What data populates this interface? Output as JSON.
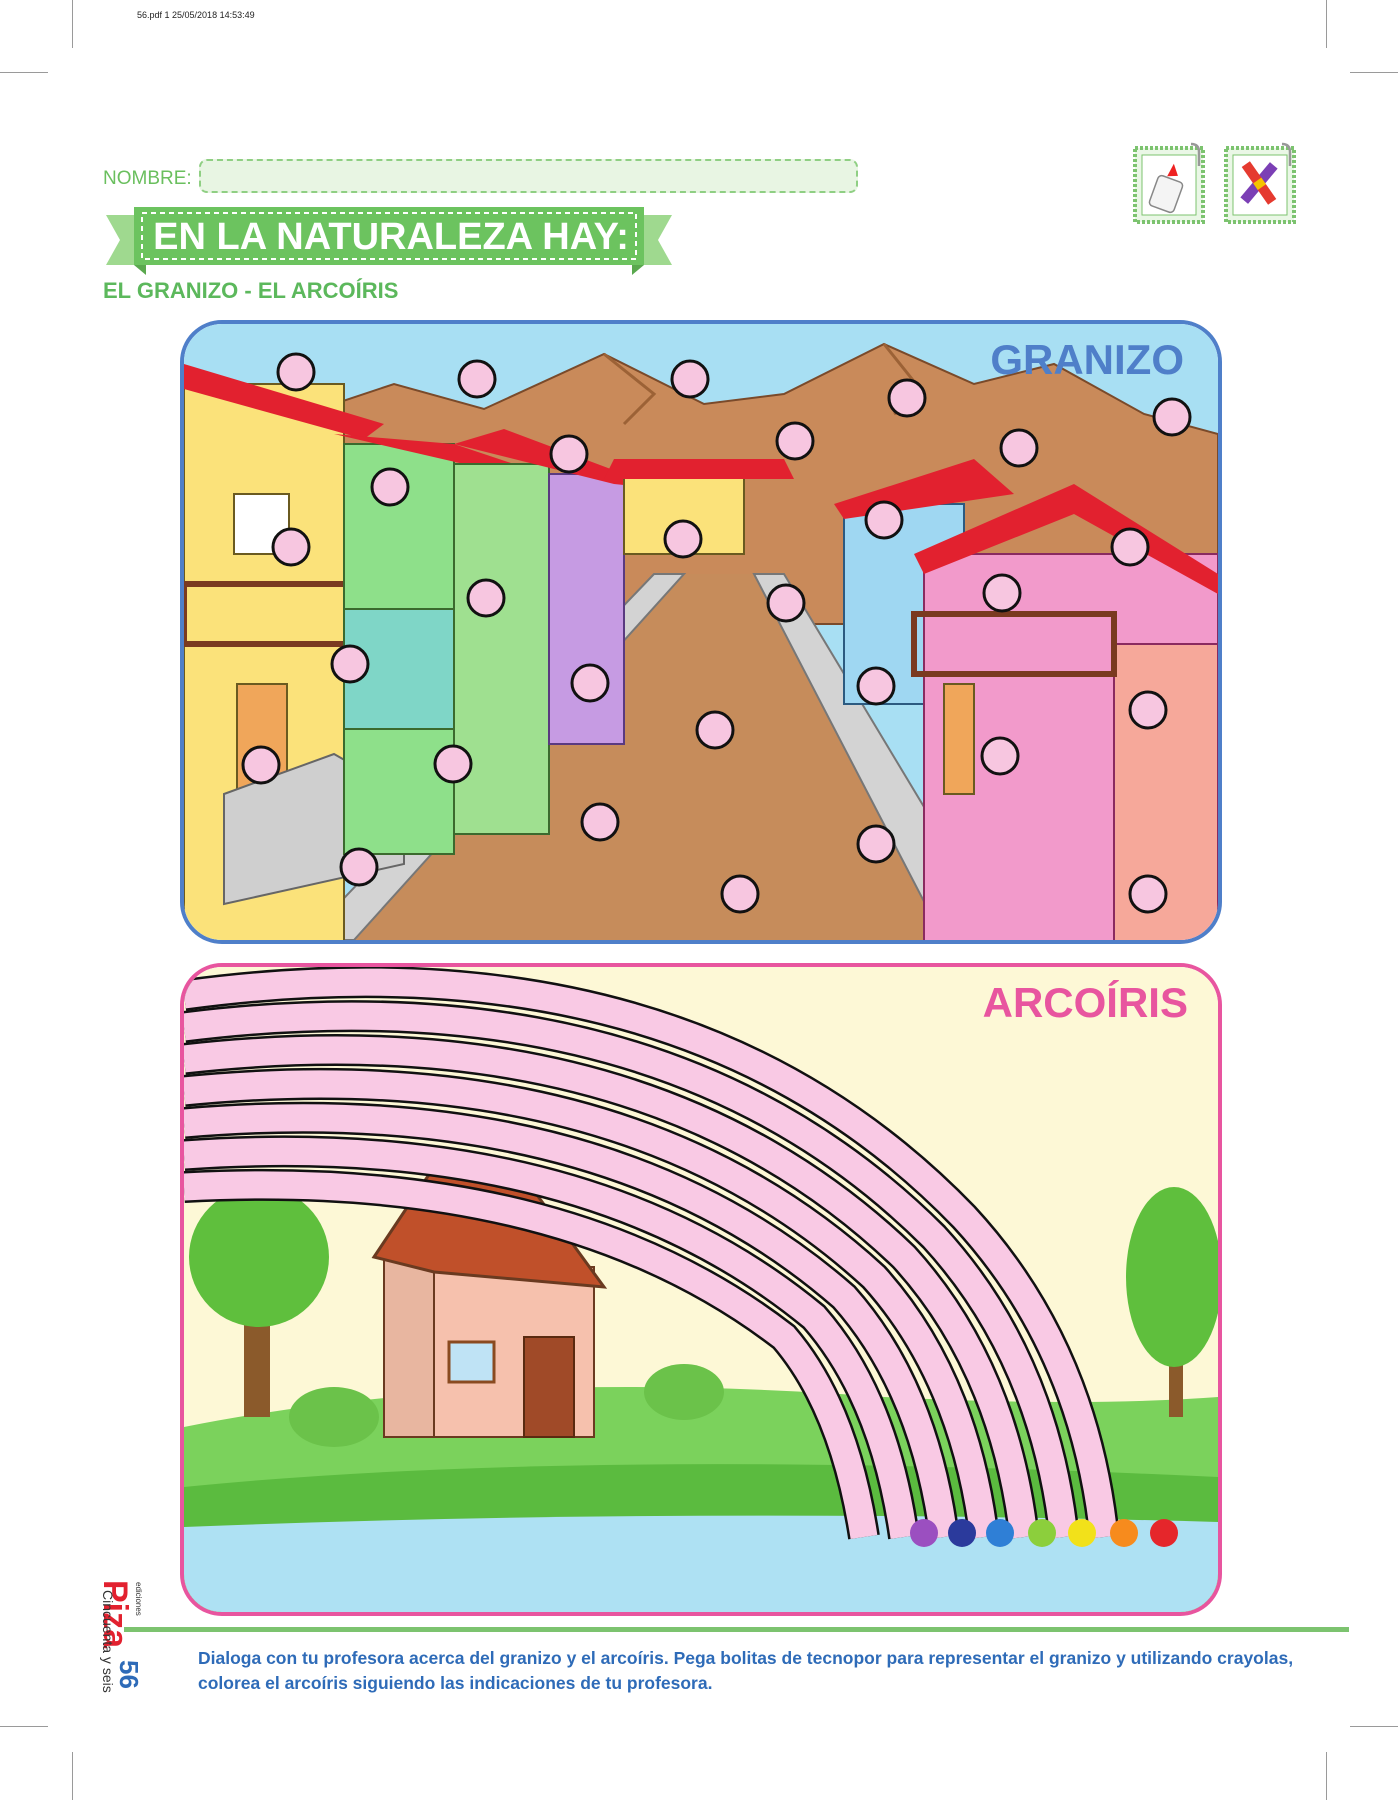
{
  "print_info": "56.pdf   1   25/05/2018   14:53:49",
  "header": {
    "name_label": "NOMBRE:",
    "title": "EN LA NATURALEZA HAY:",
    "subtitle": "EL GRANIZO - EL ARCOÍRIS"
  },
  "materials": [
    {
      "icon": "glue-bottle-icon"
    },
    {
      "icon": "crayons-icon"
    }
  ],
  "panels": {
    "granizo": {
      "title": "GRANIZO",
      "border_color": "#4f7fc9"
    },
    "arcoiris": {
      "title": "ARCOÍRIS",
      "border_color": "#e8559f"
    }
  },
  "sidebar": {
    "brand": "Piza",
    "brand_sub": "ediciones",
    "page_words": "Cincuenta y seis",
    "page_number": "56"
  },
  "instruction": "Dialoga con tu profesora acerca del granizo y el arcoíris. Pega bolitas de tecnopor para representar el granizo y utilizando crayolas, colorea el arcoíris siguiendo las indicaciones de tu profesora.",
  "colors": {
    "accent_green": "#6abf5e",
    "hail_dot": "#f7c6e0",
    "rainbow_band": "#f9c9e4",
    "splash_colors": [
      "#9b4fc0",
      "#2b3a9c",
      "#2f7fd6",
      "#8ccf3c",
      "#f2e11a",
      "#f78b1d",
      "#e5262b"
    ]
  }
}
